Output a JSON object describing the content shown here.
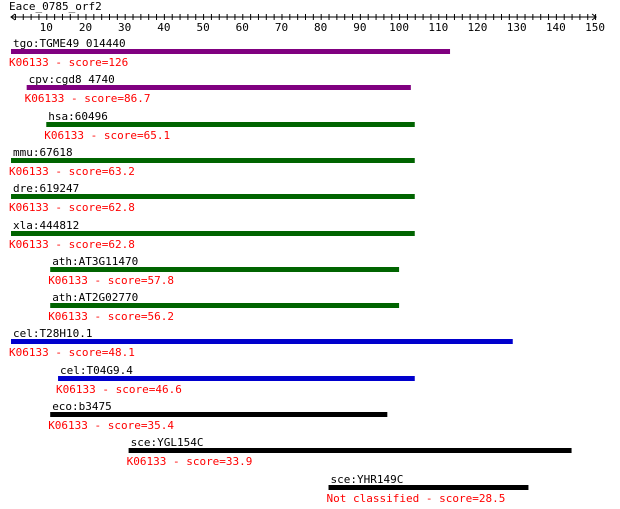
{
  "query": {
    "name": "Eace_0785_orf2",
    "length": 150
  },
  "axis": {
    "ticks": [
      "10",
      "20",
      "30",
      "40",
      "50",
      "60",
      "70",
      "80",
      "90",
      "100",
      "110",
      "120",
      "130",
      "140",
      "150"
    ]
  },
  "hits": [
    {
      "name": "tgo:TGME49_014440",
      "start": 1,
      "end": 113,
      "score_text": "K06133 - score=126",
      "color": "#800080"
    },
    {
      "name": "cpv:cgd8_4740",
      "start": 5,
      "end": 103,
      "score_text": "K06133 - score=86.7",
      "color": "#800080"
    },
    {
      "name": "hsa:60496",
      "start": 10,
      "end": 104,
      "score_text": "K06133 - score=65.1",
      "color": "#006400"
    },
    {
      "name": "mmu:67618",
      "start": 1,
      "end": 104,
      "score_text": "K06133 - score=63.2",
      "color": "#006400"
    },
    {
      "name": "dre:619247",
      "start": 1,
      "end": 104,
      "score_text": "K06133 - score=62.8",
      "color": "#006400"
    },
    {
      "name": "xla:444812",
      "start": 1,
      "end": 104,
      "score_text": "K06133 - score=62.8",
      "color": "#006400"
    },
    {
      "name": "ath:AT3G11470",
      "start": 11,
      "end": 100,
      "score_text": "K06133 - score=57.8",
      "color": "#006400"
    },
    {
      "name": "ath:AT2G02770",
      "start": 11,
      "end": 100,
      "score_text": "K06133 - score=56.2",
      "color": "#006400"
    },
    {
      "name": "cel:T28H10.1",
      "start": 1,
      "end": 129,
      "score_text": "K06133 - score=48.1",
      "color": "#0000cd"
    },
    {
      "name": "cel:T04G9.4",
      "start": 13,
      "end": 104,
      "score_text": "K06133 - score=46.6",
      "color": "#0000cd"
    },
    {
      "name": "eco:b3475",
      "start": 11,
      "end": 97,
      "score_text": "K06133 - score=35.4",
      "color": "#000000"
    },
    {
      "name": "sce:YGL154C",
      "start": 31,
      "end": 144,
      "score_text": "K06133 - score=33.9",
      "color": "#000000"
    },
    {
      "name": "sce:YHR149C",
      "start": 82,
      "end": 133,
      "score_text": "Not classified - score=28.5",
      "color": "#000000"
    }
  ]
}
